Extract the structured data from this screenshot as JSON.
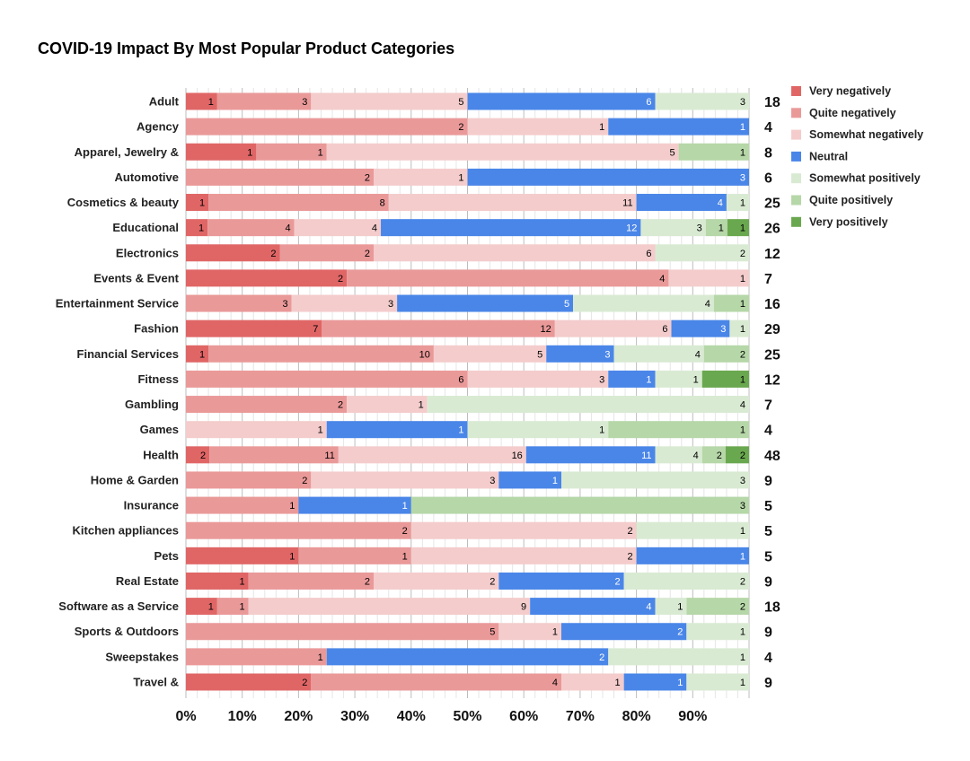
{
  "chart_data": {
    "type": "bar",
    "orientation": "horizontal",
    "stacking": "percent",
    "title": "COVID-19 Impact By Most Popular Product Categories",
    "categories": [
      "Adult",
      "Agency",
      "Apparel, Jewelry &",
      "Automotive",
      "Cosmetics & beauty",
      "Educational",
      "Electronics",
      "Events & Event",
      "Entertainment Service",
      "Fashion",
      "Financial Services",
      "Fitness",
      "Gambling",
      "Games",
      "Health",
      "Home & Garden",
      "Insurance",
      "Kitchen appliances",
      "Pets",
      "Real Estate",
      "Software as a Service",
      "Sports & Outdoors",
      "Sweepstakes",
      "Travel &"
    ],
    "totals": [
      18,
      4,
      8,
      6,
      25,
      26,
      12,
      7,
      16,
      29,
      25,
      12,
      7,
      4,
      48,
      9,
      5,
      5,
      5,
      9,
      18,
      9,
      4,
      9
    ],
    "series": [
      {
        "name": "Very negatively",
        "color": "#e06666",
        "label_color": "#000000",
        "values": [
          1,
          0,
          1,
          0,
          1,
          1,
          2,
          2,
          0,
          7,
          1,
          0,
          0,
          0,
          2,
          0,
          0,
          0,
          1,
          1,
          1,
          0,
          0,
          2
        ]
      },
      {
        "name": "Quite negatively",
        "color": "#ea9999",
        "label_color": "#000000",
        "values": [
          3,
          2,
          1,
          2,
          8,
          4,
          2,
          4,
          3,
          12,
          10,
          6,
          2,
          0,
          11,
          2,
          1,
          2,
          1,
          2,
          1,
          5,
          1,
          4
        ]
      },
      {
        "name": "Somewhat negatively",
        "color": "#f4cccc",
        "label_color": "#000000",
        "values": [
          5,
          1,
          5,
          1,
          11,
          4,
          6,
          1,
          3,
          6,
          5,
          3,
          1,
          1,
          16,
          3,
          0,
          2,
          2,
          2,
          9,
          1,
          0,
          1
        ]
      },
      {
        "name": "Neutral",
        "color": "#4a86e8",
        "label_color": "#ffffff",
        "values": [
          6,
          1,
          0,
          3,
          4,
          12,
          0,
          0,
          5,
          3,
          3,
          1,
          0,
          1,
          11,
          1,
          1,
          0,
          1,
          2,
          4,
          2,
          2,
          1
        ]
      },
      {
        "name": "Somewhat positively",
        "color": "#d9ead3",
        "label_color": "#000000",
        "values": [
          3,
          0,
          0,
          0,
          1,
          3,
          2,
          0,
          4,
          1,
          4,
          1,
          4,
          1,
          4,
          3,
          0,
          1,
          0,
          2,
          1,
          1,
          1,
          1
        ]
      },
      {
        "name": "Quite positively",
        "color": "#b6d7a8",
        "label_color": "#000000",
        "values": [
          0,
          0,
          1,
          0,
          0,
          1,
          0,
          0,
          1,
          0,
          2,
          0,
          0,
          1,
          2,
          0,
          3,
          0,
          0,
          0,
          2,
          0,
          0,
          0
        ]
      },
      {
        "name": "Very positively",
        "color": "#6aa84f",
        "label_color": "#000000",
        "values": [
          0,
          0,
          0,
          0,
          0,
          1,
          0,
          0,
          0,
          0,
          0,
          1,
          0,
          0,
          2,
          0,
          0,
          0,
          0,
          0,
          0,
          0,
          0,
          0
        ]
      }
    ],
    "x_ticks": [
      "0%",
      "10%",
      "20%",
      "30%",
      "40%",
      "50%",
      "60%",
      "70%",
      "80%",
      "90%"
    ],
    "xlim": [
      0,
      100
    ],
    "grid": true,
    "legend_position": "right-top"
  }
}
